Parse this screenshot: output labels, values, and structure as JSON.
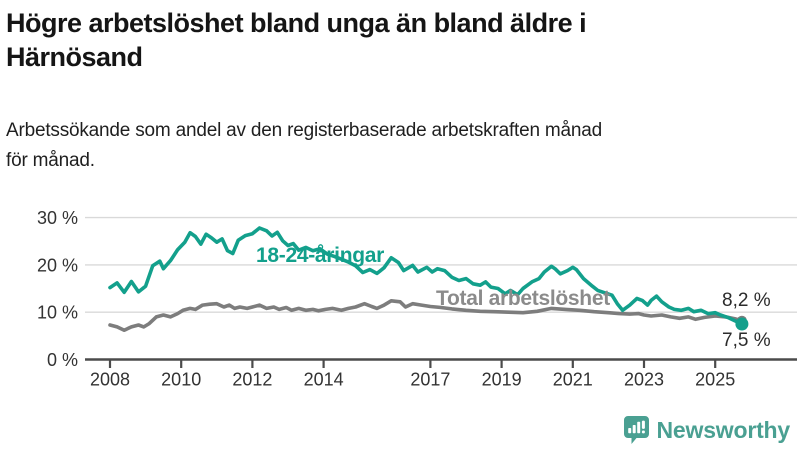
{
  "header": {
    "title_lines": [
      "Högre arbetslöshet bland unga än bland äldre i",
      "Härnösand"
    ],
    "subtitle_lines": [
      "Arbetssökande som andel av den registerbaserade arbetskraften månad",
      "för månad."
    ]
  },
  "chart_data": {
    "type": "line",
    "title": "Högre arbetslöshet bland unga än bland äldre i Härnösand",
    "subtitle": "Arbetssökande som andel av den registerbaserade arbetskraften månad för månad.",
    "unit": "%",
    "grid": "horizontal",
    "colors": {
      "youth": "#13A08C",
      "total": "#7d7d7d",
      "gridline": "#d9d9d9",
      "axis": "#4b4b4b",
      "axis_text": "#333333",
      "value_text": "#2b2b2b"
    },
    "y_axis": {
      "range": [
        0,
        32
      ],
      "ticks": [
        {
          "value": 30,
          "label": "30 %"
        },
        {
          "value": 20,
          "label": "20 %"
        },
        {
          "value": 10,
          "label": "10 %"
        },
        {
          "value": 0,
          "label": "0 %"
        }
      ]
    },
    "x_axis": {
      "range": [
        2007.3,
        2026.3
      ],
      "ticks": [
        {
          "value": 2008,
          "label": "2008"
        },
        {
          "value": 2010,
          "label": "2010"
        },
        {
          "value": 2012,
          "label": "2012"
        },
        {
          "value": 2014,
          "label": "2014"
        },
        {
          "value": 2017,
          "label": "2017"
        },
        {
          "value": 2019,
          "label": "2019"
        },
        {
          "value": 2021,
          "label": "2021"
        },
        {
          "value": 2023,
          "label": "2023"
        },
        {
          "value": 2025,
          "label": "2025"
        }
      ]
    },
    "series": [
      {
        "name": "Total arbetslöshet",
        "color": "#7d7d7d",
        "end_value": 8.2,
        "end_label": "8,2 %",
        "points": [
          [
            2008.0,
            7.3
          ],
          [
            2008.2,
            6.9
          ],
          [
            2008.4,
            6.2
          ],
          [
            2008.6,
            6.9
          ],
          [
            2008.8,
            7.3
          ],
          [
            2008.95,
            6.9
          ],
          [
            2009.1,
            7.6
          ],
          [
            2009.3,
            9.0
          ],
          [
            2009.5,
            9.4
          ],
          [
            2009.7,
            9.0
          ],
          [
            2009.9,
            9.7
          ],
          [
            2010.05,
            10.4
          ],
          [
            2010.25,
            10.8
          ],
          [
            2010.4,
            10.6
          ],
          [
            2010.6,
            11.5
          ],
          [
            2010.8,
            11.7
          ],
          [
            2011.0,
            11.8
          ],
          [
            2011.2,
            11.1
          ],
          [
            2011.35,
            11.5
          ],
          [
            2011.5,
            10.8
          ],
          [
            2011.65,
            11.1
          ],
          [
            2011.85,
            10.8
          ],
          [
            2012.0,
            11.1
          ],
          [
            2012.2,
            11.5
          ],
          [
            2012.4,
            10.8
          ],
          [
            2012.6,
            11.1
          ],
          [
            2012.75,
            10.6
          ],
          [
            2012.95,
            11.0
          ],
          [
            2013.1,
            10.4
          ],
          [
            2013.3,
            10.8
          ],
          [
            2013.5,
            10.4
          ],
          [
            2013.7,
            10.6
          ],
          [
            2013.85,
            10.3
          ],
          [
            2014.05,
            10.6
          ],
          [
            2014.25,
            10.8
          ],
          [
            2014.5,
            10.4
          ],
          [
            2014.7,
            10.8
          ],
          [
            2014.9,
            11.1
          ],
          [
            2015.15,
            11.8
          ],
          [
            2015.35,
            11.2
          ],
          [
            2015.5,
            10.8
          ],
          [
            2015.7,
            11.5
          ],
          [
            2015.9,
            12.4
          ],
          [
            2016.15,
            12.2
          ],
          [
            2016.3,
            11.1
          ],
          [
            2016.5,
            11.8
          ],
          [
            2016.75,
            11.5
          ],
          [
            2017.0,
            11.2
          ],
          [
            2017.3,
            11.0
          ],
          [
            2017.6,
            10.7
          ],
          [
            2018.0,
            10.4
          ],
          [
            2018.4,
            10.2
          ],
          [
            2018.8,
            10.1
          ],
          [
            2019.2,
            10.0
          ],
          [
            2019.6,
            9.9
          ],
          [
            2020.0,
            10.2
          ],
          [
            2020.4,
            10.8
          ],
          [
            2020.8,
            10.6
          ],
          [
            2021.2,
            10.4
          ],
          [
            2021.6,
            10.1
          ],
          [
            2022.0,
            9.9
          ],
          [
            2022.3,
            9.7
          ],
          [
            2022.6,
            9.6
          ],
          [
            2022.85,
            9.7
          ],
          [
            2023.0,
            9.4
          ],
          [
            2023.2,
            9.2
          ],
          [
            2023.5,
            9.4
          ],
          [
            2023.75,
            9.0
          ],
          [
            2024.0,
            8.7
          ],
          [
            2024.25,
            9.0
          ],
          [
            2024.45,
            8.5
          ],
          [
            2024.7,
            8.9
          ],
          [
            2025.0,
            9.2
          ],
          [
            2025.3,
            9.0
          ],
          [
            2025.55,
            8.6
          ],
          [
            2025.75,
            8.2
          ]
        ]
      },
      {
        "name": "18-24-åringar",
        "color": "#13A08C",
        "end_value": 7.5,
        "end_label": "7,5 %",
        "points": [
          [
            2008.0,
            15.2
          ],
          [
            2008.2,
            16.2
          ],
          [
            2008.4,
            14.2
          ],
          [
            2008.6,
            16.5
          ],
          [
            2008.8,
            14.3
          ],
          [
            2009.0,
            15.5
          ],
          [
            2009.2,
            19.8
          ],
          [
            2009.4,
            20.8
          ],
          [
            2009.5,
            19.2
          ],
          [
            2009.7,
            20.9
          ],
          [
            2009.9,
            23.2
          ],
          [
            2010.1,
            24.8
          ],
          [
            2010.25,
            26.8
          ],
          [
            2010.4,
            26.0
          ],
          [
            2010.55,
            24.4
          ],
          [
            2010.7,
            26.5
          ],
          [
            2010.85,
            25.7
          ],
          [
            2011.0,
            24.8
          ],
          [
            2011.15,
            25.5
          ],
          [
            2011.3,
            23.0
          ],
          [
            2011.45,
            22.4
          ],
          [
            2011.6,
            25.2
          ],
          [
            2011.8,
            26.2
          ],
          [
            2012.0,
            26.6
          ],
          [
            2012.2,
            27.8
          ],
          [
            2012.4,
            27.2
          ],
          [
            2012.55,
            26.1
          ],
          [
            2012.7,
            26.9
          ],
          [
            2012.85,
            25.1
          ],
          [
            2013.0,
            24.1
          ],
          [
            2013.15,
            24.5
          ],
          [
            2013.3,
            23.1
          ],
          [
            2013.5,
            23.7
          ],
          [
            2013.7,
            23.0
          ],
          [
            2013.9,
            23.4
          ],
          [
            2014.1,
            22.3
          ],
          [
            2014.3,
            21.8
          ],
          [
            2014.5,
            21.2
          ],
          [
            2014.7,
            20.6
          ],
          [
            2014.9,
            19.8
          ],
          [
            2015.1,
            18.4
          ],
          [
            2015.3,
            19.0
          ],
          [
            2015.5,
            18.2
          ],
          [
            2015.7,
            19.4
          ],
          [
            2015.9,
            21.5
          ],
          [
            2016.1,
            20.5
          ],
          [
            2016.25,
            18.8
          ],
          [
            2016.5,
            19.9
          ],
          [
            2016.65,
            18.5
          ],
          [
            2016.9,
            19.5
          ],
          [
            2017.05,
            18.5
          ],
          [
            2017.2,
            19.2
          ],
          [
            2017.4,
            18.8
          ],
          [
            2017.6,
            17.4
          ],
          [
            2017.8,
            16.7
          ],
          [
            2018.0,
            17.1
          ],
          [
            2018.2,
            16.0
          ],
          [
            2018.4,
            15.7
          ],
          [
            2018.55,
            16.4
          ],
          [
            2018.7,
            15.3
          ],
          [
            2018.9,
            15.0
          ],
          [
            2019.1,
            13.9
          ],
          [
            2019.25,
            14.6
          ],
          [
            2019.45,
            13.7
          ],
          [
            2019.6,
            15.0
          ],
          [
            2019.85,
            16.4
          ],
          [
            2020.05,
            17.1
          ],
          [
            2020.2,
            18.5
          ],
          [
            2020.4,
            19.7
          ],
          [
            2020.5,
            19.2
          ],
          [
            2020.65,
            18.1
          ],
          [
            2020.85,
            18.8
          ],
          [
            2021.0,
            19.5
          ],
          [
            2021.1,
            19.0
          ],
          [
            2021.3,
            17.1
          ],
          [
            2021.55,
            15.5
          ],
          [
            2021.7,
            14.6
          ],
          [
            2021.9,
            14.1
          ],
          [
            2022.1,
            13.6
          ],
          [
            2022.25,
            11.8
          ],
          [
            2022.4,
            10.4
          ],
          [
            2022.6,
            11.5
          ],
          [
            2022.8,
            12.9
          ],
          [
            2022.95,
            12.5
          ],
          [
            2023.1,
            11.5
          ],
          [
            2023.2,
            12.5
          ],
          [
            2023.35,
            13.4
          ],
          [
            2023.5,
            12.2
          ],
          [
            2023.7,
            11.1
          ],
          [
            2023.85,
            10.6
          ],
          [
            2024.05,
            10.4
          ],
          [
            2024.25,
            10.8
          ],
          [
            2024.4,
            10.1
          ],
          [
            2024.6,
            10.4
          ],
          [
            2024.8,
            9.7
          ],
          [
            2025.0,
            9.9
          ],
          [
            2025.15,
            9.4
          ],
          [
            2025.35,
            8.9
          ],
          [
            2025.55,
            8.2
          ],
          [
            2025.75,
            7.5
          ]
        ]
      }
    ],
    "legend_position": "inline-labels"
  },
  "footer": {
    "brand": "Newsworthy",
    "brand_color": "#4AA092",
    "logo_icon": "bar-chart-speech-bubble"
  }
}
